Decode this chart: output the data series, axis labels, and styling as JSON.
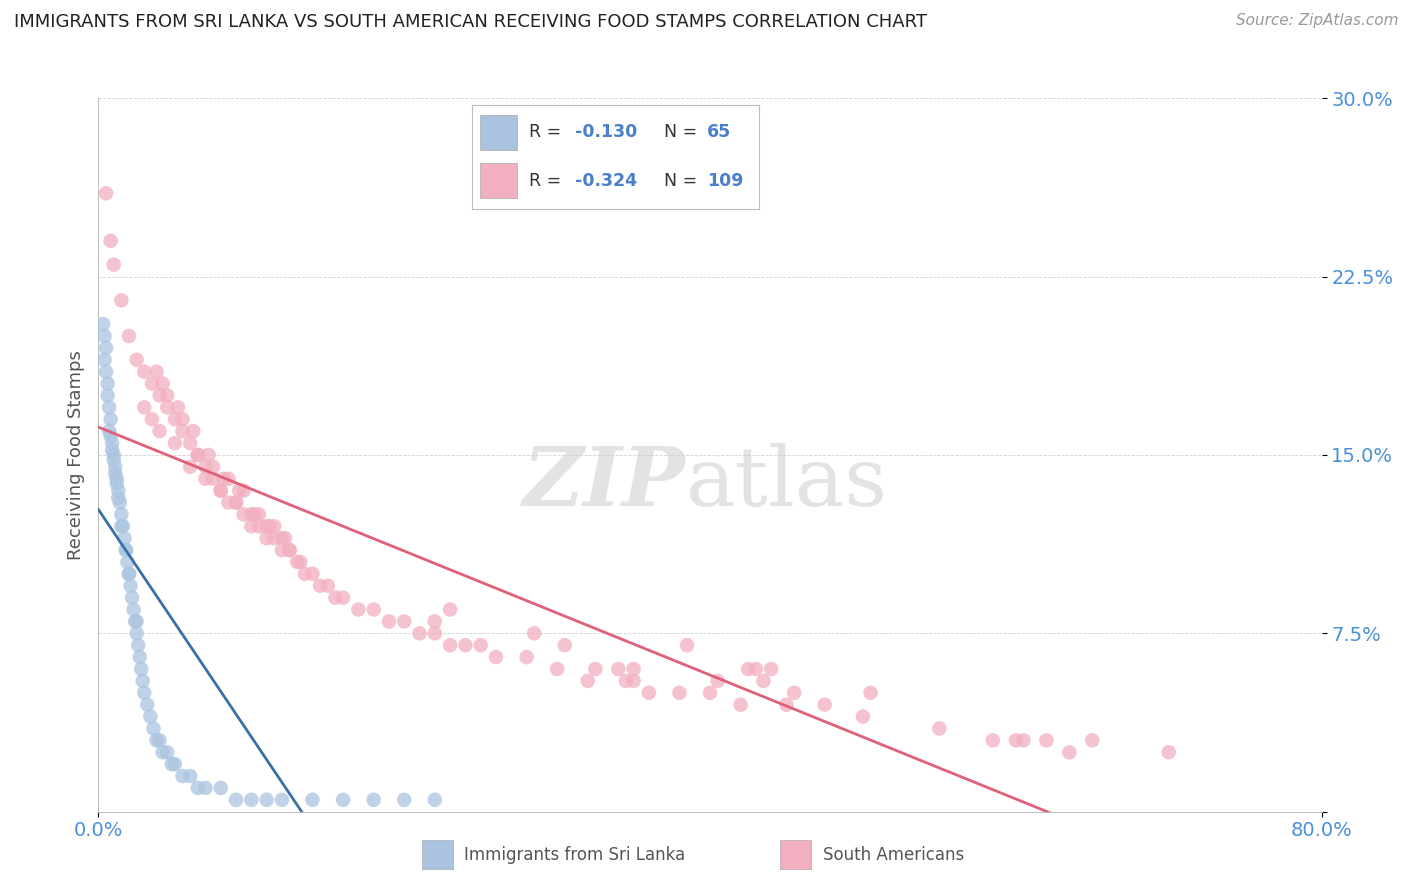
{
  "title": "IMMIGRANTS FROM SRI LANKA VS SOUTH AMERICAN RECEIVING FOOD STAMPS CORRELATION CHART",
  "source": "Source: ZipAtlas.com",
  "ylabel": "Receiving Food Stamps",
  "blue_color": "#aac4e0",
  "pink_color": "#f2afc0",
  "blue_line_color": "#3a6fa8",
  "pink_line_color": "#e0607a",
  "background_color": "#ffffff",
  "grid_color": "#cccccc",
  "title_color": "#222222",
  "axis_color": "#555555",
  "watermark_color": "#d5d5d5",
  "tick_color": "#4a90d9",
  "legend_text_color": "#222222",
  "legend_value_color": "#4a7fcc",
  "sri_lanka_x": [
    0.4,
    0.5,
    0.6,
    0.7,
    0.8,
    0.9,
    1.0,
    1.1,
    1.2,
    1.3,
    1.4,
    1.5,
    1.6,
    1.7,
    1.8,
    1.9,
    2.0,
    2.1,
    2.2,
    2.3,
    2.4,
    2.5,
    2.6,
    2.7,
    2.8,
    2.9,
    3.0,
    3.2,
    3.4,
    3.6,
    3.8,
    4.0,
    4.2,
    4.5,
    4.8,
    5.0,
    5.5,
    6.0,
    6.5,
    7.0,
    8.0,
    9.0,
    10.0,
    11.0,
    12.0,
    14.0,
    16.0,
    18.0,
    20.0,
    22.0,
    0.3,
    0.4,
    0.5,
    0.6,
    0.7,
    0.8,
    0.9,
    1.0,
    1.1,
    1.2,
    1.3,
    1.5,
    1.8,
    2.0,
    2.5
  ],
  "sri_lanka_y": [
    20.0,
    19.5,
    18.0,
    17.0,
    16.5,
    15.5,
    15.0,
    14.5,
    14.0,
    13.5,
    13.0,
    12.5,
    12.0,
    11.5,
    11.0,
    10.5,
    10.0,
    9.5,
    9.0,
    8.5,
    8.0,
    7.5,
    7.0,
    6.5,
    6.0,
    5.5,
    5.0,
    4.5,
    4.0,
    3.5,
    3.0,
    3.0,
    2.5,
    2.5,
    2.0,
    2.0,
    1.5,
    1.5,
    1.0,
    1.0,
    1.0,
    0.5,
    0.5,
    0.5,
    0.5,
    0.5,
    0.5,
    0.5,
    0.5,
    0.5,
    20.5,
    19.0,
    18.5,
    17.5,
    16.0,
    15.8,
    15.2,
    14.8,
    14.2,
    13.8,
    13.2,
    12.0,
    11.0,
    10.0,
    8.0
  ],
  "south_american_x": [
    0.5,
    0.8,
    1.0,
    1.5,
    2.0,
    2.5,
    3.0,
    3.5,
    4.0,
    4.5,
    5.0,
    5.5,
    6.0,
    6.5,
    7.0,
    7.5,
    8.0,
    8.5,
    9.0,
    9.5,
    10.0,
    10.5,
    11.0,
    11.5,
    12.0,
    12.5,
    13.0,
    13.5,
    14.0,
    14.5,
    15.0,
    15.5,
    16.0,
    17.0,
    18.0,
    19.0,
    20.0,
    21.0,
    22.0,
    23.0,
    24.0,
    25.0,
    26.0,
    28.0,
    30.0,
    32.0,
    35.0,
    38.0,
    40.0,
    42.0,
    45.0,
    50.0,
    55.0,
    60.0,
    65.0,
    70.0,
    3.0,
    3.5,
    4.0,
    5.0,
    6.0,
    7.0,
    8.0,
    9.0,
    10.0,
    11.0,
    12.0,
    4.5,
    5.5,
    6.5,
    7.5,
    8.5,
    9.5,
    10.5,
    11.5,
    12.5,
    3.8,
    4.2,
    5.2,
    6.2,
    7.2,
    8.2,
    9.2,
    10.2,
    11.2,
    12.2,
    13.2,
    35.0,
    38.5,
    22.0,
    23.0,
    28.5,
    30.5,
    42.5,
    44.0,
    45.5,
    50.5,
    60.5,
    62.0,
    63.5,
    32.5,
    34.0,
    34.5,
    36.0,
    43.0,
    43.5,
    47.5,
    58.5,
    40.5
  ],
  "south_american_y": [
    26.0,
    24.0,
    23.0,
    21.5,
    20.0,
    19.0,
    18.5,
    18.0,
    17.5,
    17.0,
    16.5,
    16.0,
    15.5,
    15.0,
    14.5,
    14.0,
    13.5,
    13.0,
    13.0,
    12.5,
    12.0,
    12.0,
    11.5,
    11.5,
    11.0,
    11.0,
    10.5,
    10.0,
    10.0,
    9.5,
    9.5,
    9.0,
    9.0,
    8.5,
    8.5,
    8.0,
    8.0,
    7.5,
    7.5,
    7.0,
    7.0,
    7.0,
    6.5,
    6.5,
    6.0,
    5.5,
    5.5,
    5.0,
    5.0,
    4.5,
    4.5,
    4.0,
    3.5,
    3.0,
    3.0,
    2.5,
    17.0,
    16.5,
    16.0,
    15.5,
    14.5,
    14.0,
    13.5,
    13.0,
    12.5,
    12.0,
    11.5,
    17.5,
    16.5,
    15.0,
    14.5,
    14.0,
    13.5,
    12.5,
    12.0,
    11.0,
    18.5,
    18.0,
    17.0,
    16.0,
    15.0,
    14.0,
    13.5,
    12.5,
    12.0,
    11.5,
    10.5,
    6.0,
    7.0,
    8.0,
    8.5,
    7.5,
    7.0,
    6.0,
    6.0,
    5.0,
    5.0,
    3.0,
    3.0,
    2.5,
    6.0,
    6.0,
    5.5,
    5.0,
    6.0,
    5.5,
    4.5,
    3.0,
    5.5
  ],
  "xlim": [
    0,
    80
  ],
  "ylim": [
    0,
    30
  ],
  "xtick_positions": [
    0,
    80
  ],
  "xtick_labels": [
    "0.0%",
    "80.0%"
  ],
  "ytick_positions": [
    0,
    7.5,
    15.0,
    22.5,
    30.0
  ],
  "ytick_labels": [
    "",
    "7.5%",
    "15.0%",
    "22.5%",
    "30.0%"
  ]
}
